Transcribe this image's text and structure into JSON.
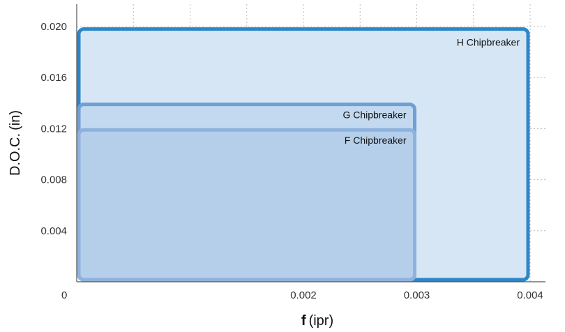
{
  "chart_data": {
    "type": "area",
    "title": "",
    "xlabel": {
      "symbol": "f",
      "unit": "(ipr)"
    },
    "ylabel": {
      "symbol": "D.O.C.",
      "unit": "(in)"
    },
    "origin_label": "0",
    "x_ticks": [
      {
        "value": 0.002,
        "label": "0.002"
      },
      {
        "value": 0.003,
        "label": "0.003"
      },
      {
        "value": 0.004,
        "label": "0.004"
      }
    ],
    "y_ticks": [
      {
        "value": 0.004,
        "label": "0.004"
      },
      {
        "value": 0.008,
        "label": "0.008"
      },
      {
        "value": 0.012,
        "label": "0.012"
      },
      {
        "value": 0.016,
        "label": "0.016"
      },
      {
        "value": 0.02,
        "label": "0.020"
      }
    ],
    "grid": true,
    "regions": [
      {
        "name": "H Chipbreaker",
        "label": "H Chipbreaker",
        "x_min": 0,
        "x_max": 0.004,
        "y_min": 0,
        "y_max": 0.0198,
        "fill": "#d6e6f4",
        "stroke": "#2f86c6"
      },
      {
        "name": "G Chipbreaker",
        "label": "G Chipbreaker",
        "x_min": 0,
        "x_max": 0.003,
        "y_min": 0,
        "y_max": 0.0139,
        "fill": "#bcd4ee",
        "stroke": "#6f9fd4"
      },
      {
        "name": "F Chipbreaker",
        "label": "F Chipbreaker",
        "x_min": 0,
        "x_max": 0.003,
        "y_min": 0,
        "y_max": 0.0119,
        "fill": "#b0cbe8",
        "stroke": "#8eb2dd"
      }
    ]
  }
}
